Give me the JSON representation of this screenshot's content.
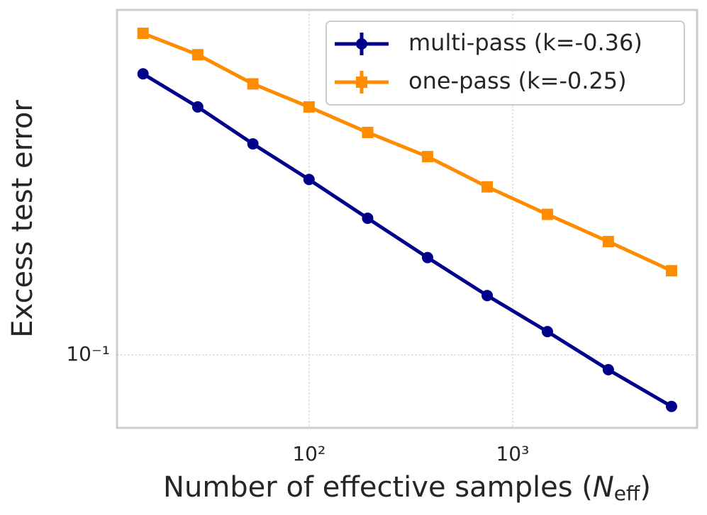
{
  "chart_data": {
    "type": "line",
    "xlabel": [
      "Number of effective samples (",
      "N",
      "eff",
      ")"
    ],
    "ylabel": "Excess test error",
    "x": [
      15.3,
      28.4,
      53,
      100,
      194,
      382,
      750,
      1482,
      2951,
      6030
    ],
    "series": [
      {
        "name": "multi-pass (k=-0.36)",
        "color": "#00008b",
        "marker": "circle",
        "values": [
          0.6,
          0.486,
          0.384,
          0.306,
          0.239,
          0.186,
          0.146,
          0.116,
          0.091,
          0.072
        ]
      },
      {
        "name": "one-pass (k=-0.25)",
        "color": "#ff8c00",
        "marker": "square",
        "values": [
          0.777,
          0.678,
          0.563,
          0.486,
          0.413,
          0.354,
          0.292,
          0.245,
          0.206,
          0.171
        ]
      }
    ],
    "xscale": "log",
    "yscale": "log",
    "xlim": [
      11.4,
      8050
    ],
    "ylim": [
      0.0628,
      0.902
    ],
    "xticks": [
      {
        "value": 100,
        "label": "10²"
      },
      {
        "value": 1000,
        "label": "10³"
      }
    ],
    "yticks": [
      {
        "value": 0.1,
        "label": "10⁻¹"
      }
    ],
    "grid": true,
    "legend": "upper right"
  }
}
